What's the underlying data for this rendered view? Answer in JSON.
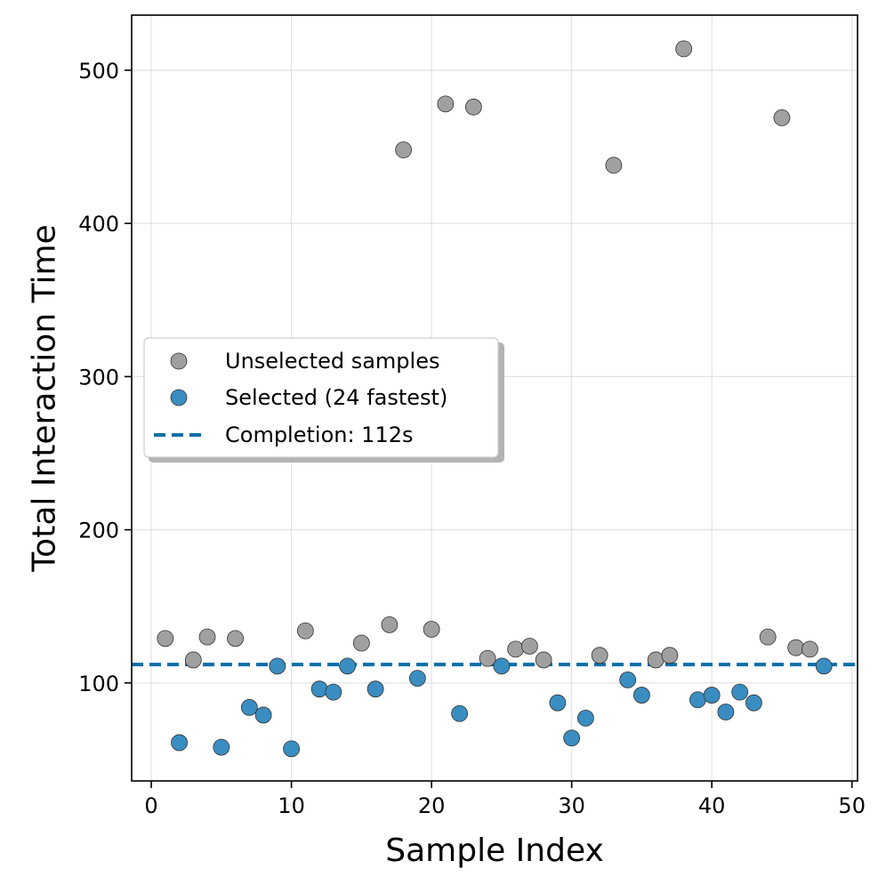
{
  "chart_data": {
    "type": "scatter",
    "title": "",
    "xlabel": "Sample Index",
    "ylabel": "Total Interaction Time",
    "xlim": [
      -1.4,
      50.4
    ],
    "ylim": [
      36,
      536
    ],
    "xticks": [
      0,
      10,
      20,
      30,
      40,
      50
    ],
    "yticks": [
      100,
      200,
      300,
      400,
      500
    ],
    "grid": true,
    "legend_position": "center-left",
    "series": [
      {
        "name": "Unselected samples",
        "color": "#a0a0a0",
        "points": [
          [
            1,
            129
          ],
          [
            3,
            115
          ],
          [
            4,
            130
          ],
          [
            6,
            129
          ],
          [
            11,
            134
          ],
          [
            15,
            126
          ],
          [
            17,
            138
          ],
          [
            18,
            448
          ],
          [
            20,
            135
          ],
          [
            21,
            478
          ],
          [
            23,
            476
          ],
          [
            24,
            116
          ],
          [
            26,
            122
          ],
          [
            27,
            124
          ],
          [
            28,
            115
          ],
          [
            32,
            118
          ],
          [
            33,
            438
          ],
          [
            36,
            115
          ],
          [
            37,
            118
          ],
          [
            38,
            514
          ],
          [
            44,
            130
          ],
          [
            45,
            469
          ],
          [
            46,
            123
          ],
          [
            47,
            122
          ]
        ]
      },
      {
        "name": "Selected (24 fastest)",
        "color": "#3a8dc0",
        "points": [
          [
            2,
            61
          ],
          [
            5,
            58
          ],
          [
            7,
            84
          ],
          [
            8,
            79
          ],
          [
            9,
            111
          ],
          [
            10,
            57
          ],
          [
            12,
            96
          ],
          [
            13,
            94
          ],
          [
            14,
            111
          ],
          [
            16,
            96
          ],
          [
            19,
            103
          ],
          [
            22,
            80
          ],
          [
            25,
            111
          ],
          [
            29,
            87
          ],
          [
            30,
            64
          ],
          [
            31,
            77
          ],
          [
            34,
            102
          ],
          [
            35,
            92
          ],
          [
            39,
            89
          ],
          [
            40,
            92
          ],
          [
            41,
            81
          ],
          [
            42,
            94
          ],
          [
            43,
            87
          ],
          [
            48,
            111
          ]
        ]
      }
    ],
    "reference_line": {
      "name": "Completion: 112s",
      "y": 112,
      "color": "#0a6fa8",
      "style": "dashed"
    }
  }
}
